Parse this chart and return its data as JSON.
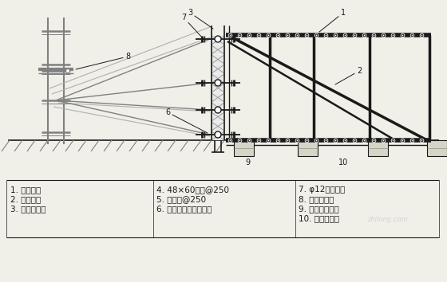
{
  "bg_color": "#f0efe8",
  "line_color": "#1a1a1a",
  "gray_color": "#808080",
  "light_gray": "#b0b0b0",
  "figsize": [
    5.6,
    3.54
  ],
  "dpi": 100,
  "legend_col1": [
    "1. 受力钉筋",
    "2. 钉筋支架",
    "3. 双面覆膜板"
  ],
  "legend_col2": [
    "4. 48×60木方@250",
    "5. 脚手管@250",
    "6. 脚手管（横向围檁）"
  ],
  "legend_col3": [
    "7. φ12对拉螺栓",
    "8. 脚手管支撑",
    "9. 混凝土垫层面",
    "10. 混凝土管框"
  ]
}
